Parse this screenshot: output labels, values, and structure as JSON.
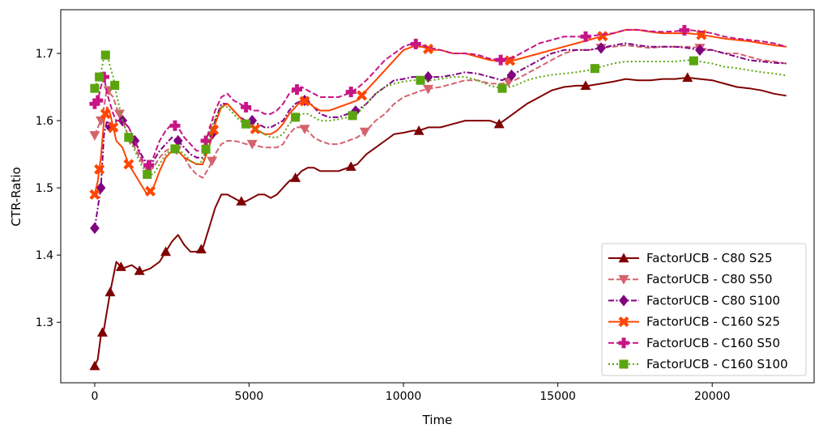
{
  "chart_data": {
    "type": "line",
    "xlabel": "Time",
    "ylabel": "CTR-Ratio",
    "xlim": [
      -1100,
      23300
    ],
    "ylim": [
      1.21,
      1.765
    ],
    "xticks": [
      0,
      5000,
      10000,
      15000,
      20000
    ],
    "yticks": [
      1.3,
      1.4,
      1.5,
      1.6,
      1.7
    ],
    "xtick_labels": [
      "0",
      "5000",
      "10000",
      "15000",
      "20000"
    ],
    "ytick_labels": [
      "1.3",
      "1.4",
      "1.5",
      "1.6",
      "1.7"
    ],
    "legend_position": "lower-right",
    "series": [
      {
        "name": "FactorUCB - C80 S25",
        "color": "#800000",
        "dash": "solid",
        "marker": "triangle-up",
        "x": [
          0,
          100,
          200,
          300,
          500,
          700,
          900,
          1200,
          1500,
          1800,
          2100,
          2300,
          2500,
          2700,
          2900,
          3100,
          3300,
          3500,
          3700,
          3900,
          4100,
          4300,
          4500,
          4700,
          4900,
          5100,
          5300,
          5500,
          5700,
          5900,
          6100,
          6300,
          6500,
          6700,
          6900,
          7100,
          7300,
          7600,
          7900,
          8200,
          8500,
          8800,
          9100,
          9400,
          9700,
          10000,
          10300,
          10500,
          10800,
          11200,
          11600,
          12000,
          12400,
          12800,
          13100,
          13400,
          13700,
          14000,
          14400,
          14800,
          15200,
          15600,
          16000,
          16400,
          16800,
          17200,
          17600,
          18000,
          18400,
          18800,
          19200,
          19600,
          20000,
          20400,
          20800,
          21200,
          21600,
          22000,
          22400
        ],
        "y": [
          1.235,
          1.245,
          1.28,
          1.29,
          1.345,
          1.39,
          1.38,
          1.385,
          1.375,
          1.38,
          1.39,
          1.405,
          1.42,
          1.43,
          1.415,
          1.405,
          1.405,
          1.41,
          1.44,
          1.47,
          1.49,
          1.49,
          1.485,
          1.48,
          1.48,
          1.485,
          1.49,
          1.49,
          1.485,
          1.49,
          1.5,
          1.51,
          1.515,
          1.525,
          1.53,
          1.53,
          1.525,
          1.525,
          1.525,
          1.53,
          1.535,
          1.55,
          1.56,
          1.57,
          1.58,
          1.582,
          1.585,
          1.585,
          1.59,
          1.59,
          1.595,
          1.6,
          1.6,
          1.6,
          1.595,
          1.605,
          1.615,
          1.625,
          1.635,
          1.645,
          1.65,
          1.652,
          1.652,
          1.655,
          1.658,
          1.662,
          1.66,
          1.66,
          1.662,
          1.662,
          1.664,
          1.662,
          1.66,
          1.655,
          1.65,
          1.648,
          1.645,
          1.64,
          1.637
        ],
        "marker_x": [
          0,
          250,
          500,
          850,
          1450,
          2300,
          3450,
          4750,
          6500,
          8300,
          10500,
          13100,
          15900,
          19200
        ]
      },
      {
        "name": "FactorUCB - C80 S50",
        "color": "#d4636e",
        "dash": "dashed",
        "marker": "triangle-down",
        "x": [
          0,
          100,
          200,
          300,
          400,
          500,
          600,
          700,
          900,
          1100,
          1300,
          1500,
          1700,
          1900,
          2100,
          2300,
          2500,
          2700,
          2900,
          3100,
          3300,
          3500,
          3700,
          3900,
          4100,
          4300,
          4500,
          4700,
          4900,
          5100,
          5300,
          5500,
          5700,
          5900,
          6100,
          6300,
          6500,
          6700,
          6900,
          7100,
          7300,
          7600,
          7900,
          8200,
          8500,
          8800,
          9100,
          9400,
          9700,
          10000,
          10300,
          10600,
          10900,
          11200,
          11600,
          12000,
          12400,
          12800,
          13200,
          13600,
          14000,
          14400,
          14800,
          15200,
          15600,
          16000,
          16400,
          16800,
          17200,
          17600,
          18000,
          18400,
          18800,
          19200,
          19600,
          20000,
          20400,
          20800,
          21200,
          21600,
          22000,
          22400
        ],
        "y": [
          1.578,
          1.59,
          1.6,
          1.62,
          1.65,
          1.64,
          1.635,
          1.62,
          1.6,
          1.575,
          1.56,
          1.54,
          1.525,
          1.53,
          1.545,
          1.555,
          1.56,
          1.555,
          1.545,
          1.53,
          1.52,
          1.515,
          1.53,
          1.55,
          1.565,
          1.57,
          1.57,
          1.568,
          1.565,
          1.565,
          1.562,
          1.56,
          1.56,
          1.56,
          1.565,
          1.58,
          1.59,
          1.59,
          1.585,
          1.575,
          1.57,
          1.565,
          1.565,
          1.57,
          1.575,
          1.585,
          1.6,
          1.61,
          1.625,
          1.635,
          1.64,
          1.645,
          1.648,
          1.65,
          1.655,
          1.66,
          1.66,
          1.655,
          1.655,
          1.66,
          1.67,
          1.68,
          1.69,
          1.7,
          1.705,
          1.705,
          1.708,
          1.71,
          1.712,
          1.71,
          1.708,
          1.71,
          1.71,
          1.71,
          1.708,
          1.705,
          1.7,
          1.7,
          1.695,
          1.69,
          1.688,
          1.685
        ],
        "marker_x": [
          0,
          200,
          450,
          800,
          1150,
          1750,
          2650,
          3800,
          5100,
          6800,
          8750,
          10800,
          13400,
          16400,
          19600
        ]
      },
      {
        "name": "FactorUCB - C80 S100",
        "color": "#800080",
        "dash": "dashdot",
        "marker": "diamond",
        "x": [
          0,
          100,
          200,
          300,
          400,
          500,
          600,
          700,
          900,
          1100,
          1300,
          1500,
          1700,
          1900,
          2100,
          2300,
          2500,
          2700,
          2900,
          3100,
          3300,
          3500,
          3700,
          3900,
          4100,
          4300,
          4500,
          4700,
          4900,
          5100,
          5300,
          5500,
          5700,
          5900,
          6100,
          6300,
          6500,
          6700,
          6900,
          7100,
          7300,
          7600,
          7900,
          8200,
          8500,
          8800,
          9100,
          9400,
          9700,
          10000,
          10300,
          10600,
          10900,
          11200,
          11600,
          12000,
          12400,
          12800,
          13200,
          13600,
          14000,
          14400,
          14800,
          15200,
          15600,
          16000,
          16400,
          16800,
          17200,
          17600,
          18000,
          18400,
          18800,
          19200,
          19600,
          20000,
          20400,
          20800,
          21200,
          21600,
          22000,
          22400
        ],
        "y": [
          1.44,
          1.47,
          1.5,
          1.58,
          1.6,
          1.59,
          1.59,
          1.6,
          1.6,
          1.59,
          1.57,
          1.55,
          1.535,
          1.54,
          1.555,
          1.565,
          1.575,
          1.57,
          1.56,
          1.55,
          1.545,
          1.545,
          1.56,
          1.6,
          1.625,
          1.625,
          1.615,
          1.605,
          1.6,
          1.6,
          1.595,
          1.59,
          1.59,
          1.595,
          1.6,
          1.615,
          1.625,
          1.63,
          1.63,
          1.62,
          1.61,
          1.605,
          1.605,
          1.61,
          1.615,
          1.625,
          1.64,
          1.65,
          1.66,
          1.662,
          1.665,
          1.665,
          1.665,
          1.665,
          1.668,
          1.672,
          1.67,
          1.665,
          1.66,
          1.67,
          1.68,
          1.69,
          1.7,
          1.705,
          1.705,
          1.705,
          1.708,
          1.712,
          1.715,
          1.712,
          1.71,
          1.71,
          1.71,
          1.708,
          1.705,
          1.705,
          1.7,
          1.695,
          1.69,
          1.688,
          1.686,
          1.685
        ],
        "marker_x": [
          0,
          200,
          500,
          900,
          1300,
          2700,
          3800,
          5100,
          6800,
          8450,
          10800,
          13500,
          16400,
          19600
        ]
      },
      {
        "name": "FactorUCB - C160 S25",
        "color": "#ff4500",
        "dash": "solid",
        "marker": "x",
        "x": [
          0,
          100,
          200,
          300,
          400,
          500,
          600,
          700,
          900,
          1100,
          1300,
          1500,
          1700,
          1900,
          2100,
          2300,
          2500,
          2700,
          2900,
          3100,
          3300,
          3500,
          3700,
          3900,
          4100,
          4300,
          4500,
          4700,
          4900,
          5100,
          5300,
          5500,
          5700,
          5900,
          6100,
          6300,
          6500,
          6700,
          6900,
          7100,
          7300,
          7600,
          7900,
          8200,
          8500,
          8800,
          9100,
          9400,
          9700,
          10000,
          10300,
          10600,
          10900,
          11200,
          11600,
          12000,
          12400,
          12800,
          13200,
          13600,
          14000,
          14400,
          14800,
          15200,
          15600,
          16000,
          16400,
          16800,
          17200,
          17600,
          18000,
          18400,
          18800,
          19200,
          19600,
          20000,
          20400,
          20800,
          21200,
          21600,
          22000,
          22400
        ],
        "y": [
          1.49,
          1.51,
          1.545,
          1.6,
          1.62,
          1.61,
          1.59,
          1.57,
          1.56,
          1.535,
          1.52,
          1.505,
          1.49,
          1.5,
          1.525,
          1.545,
          1.555,
          1.555,
          1.545,
          1.54,
          1.535,
          1.535,
          1.56,
          1.595,
          1.62,
          1.625,
          1.615,
          1.605,
          1.595,
          1.59,
          1.585,
          1.58,
          1.58,
          1.585,
          1.595,
          1.61,
          1.62,
          1.63,
          1.628,
          1.62,
          1.615,
          1.615,
          1.62,
          1.625,
          1.63,
          1.645,
          1.66,
          1.675,
          1.69,
          1.705,
          1.71,
          1.71,
          1.705,
          1.705,
          1.7,
          1.7,
          1.695,
          1.69,
          1.688,
          1.69,
          1.695,
          1.7,
          1.705,
          1.71,
          1.715,
          1.72,
          1.725,
          1.73,
          1.735,
          1.735,
          1.732,
          1.73,
          1.73,
          1.73,
          1.728,
          1.725,
          1.722,
          1.72,
          1.718,
          1.715,
          1.712,
          1.71
        ],
        "marker_x": [
          0,
          150,
          350,
          600,
          1100,
          1800,
          3850,
          5200,
          6800,
          8650,
          10800,
          13450,
          16450,
          19650
        ]
      },
      {
        "name": "FactorUCB - C160 S50",
        "color": "#c71585",
        "dash": "dashed",
        "marker": "plus",
        "x": [
          0,
          100,
          200,
          300,
          400,
          500,
          600,
          700,
          900,
          1100,
          1300,
          1500,
          1700,
          1900,
          2100,
          2300,
          2500,
          2700,
          2900,
          3100,
          3300,
          3500,
          3700,
          3900,
          4100,
          4300,
          4500,
          4700,
          4900,
          5100,
          5300,
          5500,
          5700,
          5900,
          6100,
          6300,
          6500,
          6700,
          6900,
          7100,
          7300,
          7600,
          7900,
          8200,
          8500,
          8800,
          9100,
          9400,
          9700,
          10000,
          10300,
          10600,
          10900,
          11200,
          11600,
          12000,
          12400,
          12800,
          13200,
          13600,
          14000,
          14400,
          14800,
          15200,
          15600,
          16000,
          16400,
          16800,
          17200,
          17600,
          18000,
          18400,
          18800,
          19200,
          19600,
          20000,
          20400,
          20800,
          21200,
          21600,
          22000,
          22400
        ],
        "y": [
          1.625,
          1.63,
          1.65,
          1.665,
          1.64,
          1.625,
          1.61,
          1.6,
          1.6,
          1.59,
          1.57,
          1.545,
          1.53,
          1.545,
          1.57,
          1.585,
          1.595,
          1.59,
          1.575,
          1.565,
          1.555,
          1.555,
          1.585,
          1.615,
          1.635,
          1.64,
          1.63,
          1.625,
          1.62,
          1.615,
          1.615,
          1.61,
          1.61,
          1.615,
          1.625,
          1.64,
          1.645,
          1.65,
          1.645,
          1.64,
          1.635,
          1.635,
          1.635,
          1.64,
          1.648,
          1.66,
          1.675,
          1.69,
          1.7,
          1.71,
          1.715,
          1.712,
          1.708,
          1.705,
          1.7,
          1.7,
          1.698,
          1.692,
          1.69,
          1.695,
          1.705,
          1.715,
          1.72,
          1.725,
          1.725,
          1.725,
          1.728,
          1.73,
          1.735,
          1.735,
          1.733,
          1.732,
          1.733,
          1.735,
          1.733,
          1.73,
          1.725,
          1.722,
          1.72,
          1.718,
          1.715,
          1.71
        ],
        "marker_x": [
          0,
          100,
          300,
          1750,
          2600,
          3600,
          4900,
          6550,
          8300,
          10400,
          13150,
          15900,
          19100
        ]
      },
      {
        "name": "FactorUCB - C160 S100",
        "color": "#5aa50f",
        "dash": "dotted",
        "marker": "square",
        "x": [
          0,
          100,
          200,
          300,
          400,
          500,
          600,
          700,
          900,
          1100,
          1300,
          1500,
          1700,
          1900,
          2100,
          2300,
          2500,
          2700,
          2900,
          3100,
          3300,
          3500,
          3700,
          3900,
          4100,
          4300,
          4500,
          4700,
          4900,
          5100,
          5300,
          5500,
          5700,
          5900,
          6100,
          6300,
          6500,
          6700,
          6900,
          7100,
          7300,
          7600,
          7900,
          8200,
          8500,
          8800,
          9100,
          9400,
          9700,
          10000,
          10300,
          10600,
          10900,
          11200,
          11600,
          12000,
          12400,
          12800,
          13200,
          13600,
          14000,
          14400,
          14800,
          15200,
          15600,
          16000,
          16400,
          16800,
          17200,
          17600,
          18000,
          18400,
          18800,
          19200,
          19600,
          20000,
          20400,
          20800,
          21200,
          21600,
          22000,
          22400
        ],
        "y": [
          1.648,
          1.66,
          1.67,
          1.695,
          1.7,
          1.68,
          1.665,
          1.64,
          1.6,
          1.575,
          1.555,
          1.535,
          1.52,
          1.52,
          1.535,
          1.55,
          1.558,
          1.558,
          1.55,
          1.54,
          1.535,
          1.54,
          1.575,
          1.605,
          1.62,
          1.62,
          1.61,
          1.6,
          1.595,
          1.59,
          1.585,
          1.58,
          1.575,
          1.575,
          1.58,
          1.595,
          1.605,
          1.61,
          1.61,
          1.605,
          1.6,
          1.6,
          1.602,
          1.605,
          1.61,
          1.625,
          1.64,
          1.65,
          1.655,
          1.658,
          1.66,
          1.66,
          1.66,
          1.662,
          1.665,
          1.665,
          1.66,
          1.652,
          1.648,
          1.652,
          1.66,
          1.665,
          1.668,
          1.67,
          1.672,
          1.675,
          1.68,
          1.685,
          1.688,
          1.688,
          1.688,
          1.688,
          1.688,
          1.69,
          1.688,
          1.685,
          1.68,
          1.678,
          1.675,
          1.672,
          1.67,
          1.667
        ],
        "marker_x": [
          0,
          150,
          350,
          650,
          1100,
          1700,
          2600,
          3600,
          4900,
          6500,
          8350,
          10550,
          13200,
          16200,
          19400
        ]
      }
    ]
  }
}
